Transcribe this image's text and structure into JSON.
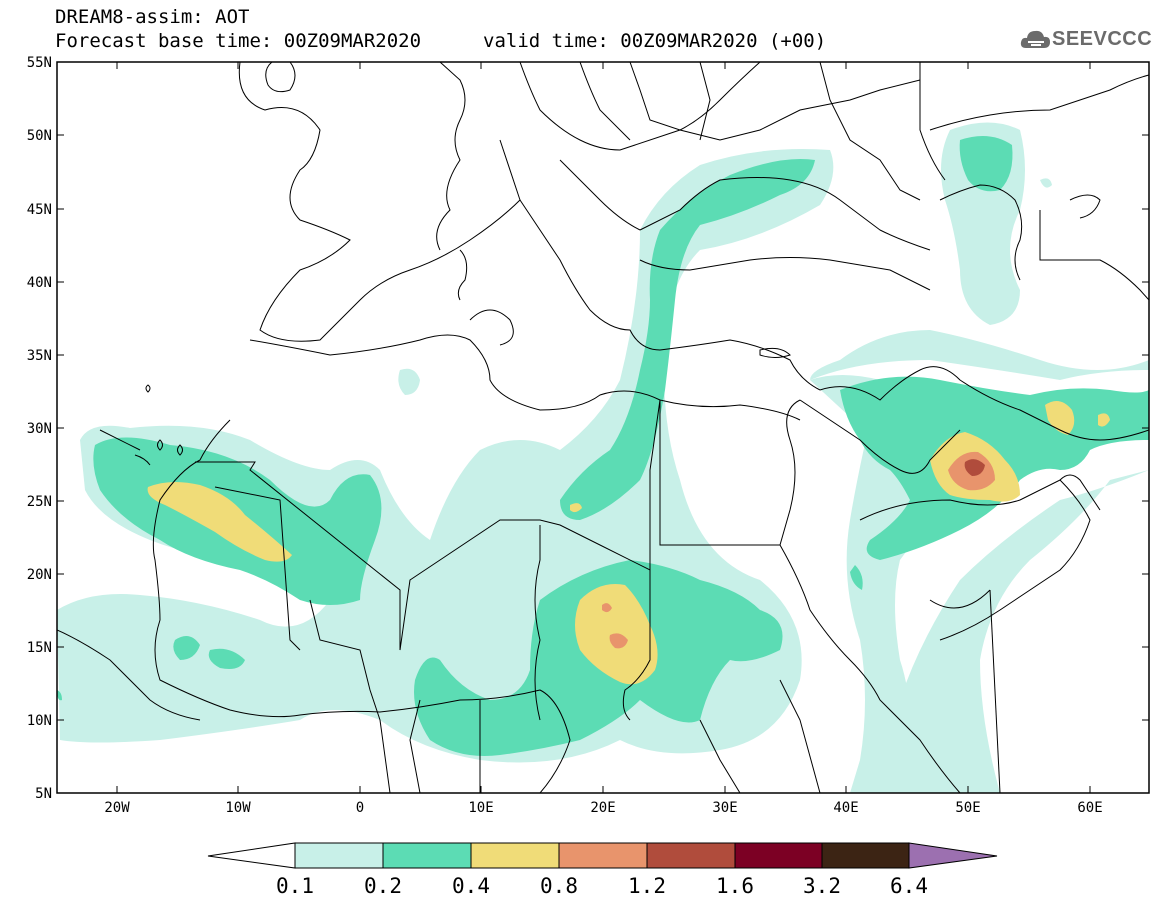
{
  "header": {
    "title": "DREAM8-assim: AOT",
    "base_time": "Forecast base time: 00Z09MAR2020",
    "valid_time": "valid time: 00Z09MAR2020 (+00)",
    "logo_text": "SEEVCCC"
  },
  "map": {
    "lat_labels": [
      "55N",
      "50N",
      "45N",
      "40N",
      "35N",
      "30N",
      "25N",
      "20N",
      "15N",
      "10N",
      "5N"
    ],
    "lon_labels": [
      "20W",
      "10W",
      "0",
      "10E",
      "20E",
      "30E",
      "40E",
      "50E",
      "60E"
    ],
    "colors": {
      "c01": "#c8f0e8",
      "c02": "#5cdcb4",
      "c04": "#f0dc78",
      "c08": "#e8946c",
      "c12": "#b04c3c",
      "c16": "#7c0024",
      "c32": "#3c2414",
      "c64": "#9c70b0",
      "border": "#000000"
    }
  },
  "colorbar": {
    "labels": [
      "0.1",
      "0.2",
      "0.4",
      "0.8",
      "1.2",
      "1.6",
      "3.2",
      "6.4"
    ]
  }
}
